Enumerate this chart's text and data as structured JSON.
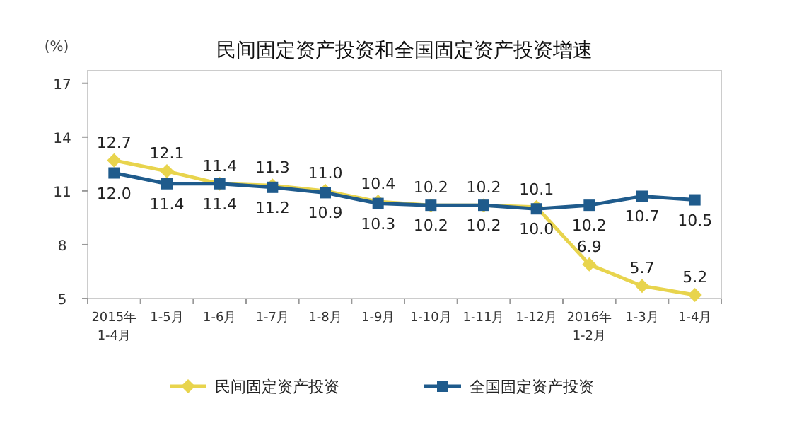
{
  "chart_data": {
    "type": "line",
    "title": "民间固定资产投资和全国固定资产投资增速",
    "ylabel": "(%)",
    "categories": [
      "2015年\n1-4月",
      "1-5月",
      "1-6月",
      "1-7月",
      "1-8月",
      "1-9月",
      "1-10月",
      "1-11月",
      "1-12月",
      "2016年\n1-2月",
      "1-3月",
      "1-4月"
    ],
    "series": [
      {
        "name": "民间固定资产投资",
        "color": "#e8d44d",
        "marker": "diamond",
        "values": [
          12.7,
          12.1,
          11.4,
          11.3,
          11.0,
          10.4,
          10.2,
          10.2,
          10.1,
          6.9,
          5.7,
          5.2
        ],
        "value_labels": [
          "12.7",
          "12.1",
          "11.4",
          "11.3",
          "11.0",
          "10.4",
          "10.2",
          "10.2",
          "10.1",
          "6.9",
          "5.7",
          "5.2"
        ]
      },
      {
        "name": "全国固定资产投资",
        "color": "#1f5b8c",
        "marker": "square",
        "values": [
          12.0,
          11.4,
          11.4,
          11.2,
          10.9,
          10.3,
          10.2,
          10.2,
          10.0,
          10.2,
          10.7,
          10.5
        ],
        "value_labels": [
          "12.0",
          "11.4",
          "11.4",
          "11.2",
          "10.9",
          "10.3",
          "10.2",
          "10.2",
          "10.0",
          "10.2",
          "10.7",
          "10.5"
        ]
      }
    ],
    "ylim": [
      5,
      17.7
    ],
    "yticks": [
      5,
      8,
      11,
      14,
      17
    ],
    "legend": "bottom",
    "grid": false,
    "line_style": "solid"
  }
}
